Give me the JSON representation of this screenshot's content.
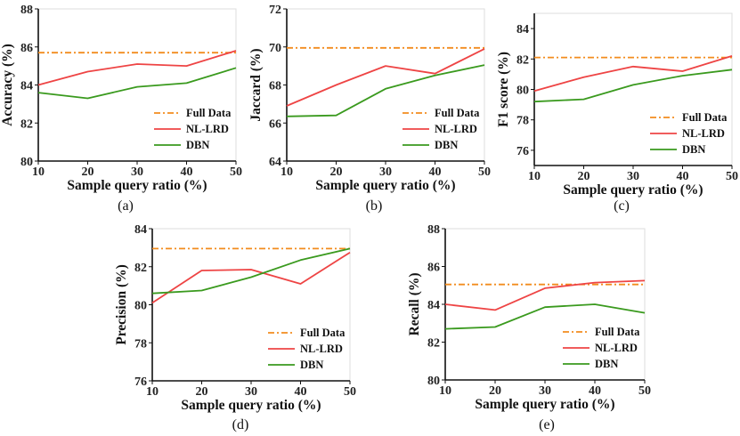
{
  "colors": {
    "full_data": "#f28c1e",
    "nl_lrd": "#ee4444",
    "dbn": "#3a9a1e",
    "axis": "#111111",
    "grid": "#dddddd"
  },
  "chart_data": [
    {
      "type": "line",
      "caption": "(a)",
      "xlabel": "Sample query ratio (%)",
      "ylabel": "Accuracy (%)",
      "x": [
        10,
        20,
        30,
        40,
        50
      ],
      "xlim": [
        10,
        50
      ],
      "ylim": [
        80,
        88
      ],
      "yticks": [
        "80",
        "82",
        "84",
        "86",
        "88"
      ],
      "xticks": [
        "10",
        "20",
        "30",
        "40",
        "50"
      ],
      "legend_position": "bottom-right",
      "series": [
        {
          "name": "Full Data",
          "style": "dashdot",
          "values": [
            85.7,
            85.7,
            85.7,
            85.7,
            85.7
          ]
        },
        {
          "name": "NL-LRD",
          "style": "solid",
          "values": [
            84.0,
            84.7,
            85.1,
            85.0,
            85.8
          ]
        },
        {
          "name": "DBN",
          "style": "solid",
          "values": [
            83.6,
            83.3,
            83.9,
            84.1,
            84.9
          ]
        }
      ]
    },
    {
      "type": "line",
      "caption": "(b)",
      "xlabel": "Sample query ratio (%)",
      "ylabel": "Jaccard (%)",
      "x": [
        10,
        20,
        30,
        40,
        50
      ],
      "xlim": [
        10,
        50
      ],
      "ylim": [
        64,
        72
      ],
      "yticks": [
        "64",
        "66",
        "68",
        "70",
        "72"
      ],
      "xticks": [
        "10",
        "20",
        "30",
        "40",
        "50"
      ],
      "legend_position": "bottom-right",
      "series": [
        {
          "name": "Full Data",
          "style": "dashdot",
          "values": [
            69.95,
            69.95,
            69.95,
            69.95,
            69.95
          ]
        },
        {
          "name": "NL-LRD",
          "style": "solid",
          "values": [
            66.9,
            68.0,
            69.0,
            68.6,
            69.9
          ]
        },
        {
          "name": "DBN",
          "style": "solid",
          "values": [
            66.35,
            66.4,
            67.8,
            68.5,
            69.05
          ]
        }
      ]
    },
    {
      "type": "line",
      "caption": "(c)",
      "xlabel": "Sample query ratio (%)",
      "ylabel": "F1 score (%)",
      "x": [
        10,
        20,
        30,
        40,
        50
      ],
      "xlim": [
        10,
        50
      ],
      "ylim": [
        75,
        85
      ],
      "yticks": [
        "76",
        "78",
        "80",
        "82",
        "84"
      ],
      "xticks": [
        "10",
        "20",
        "30",
        "40",
        "50"
      ],
      "legend_position": "bottom-right",
      "series": [
        {
          "name": "Full Data",
          "style": "dashdot",
          "values": [
            82.1,
            82.1,
            82.1,
            82.1,
            82.1
          ]
        },
        {
          "name": "NL-LRD",
          "style": "solid",
          "values": [
            79.9,
            80.8,
            81.5,
            81.2,
            82.2
          ]
        },
        {
          "name": "DBN",
          "style": "solid",
          "values": [
            79.2,
            79.35,
            80.3,
            80.9,
            81.3
          ]
        }
      ]
    },
    {
      "type": "line",
      "caption": "(d)",
      "xlabel": "Sample query ratio (%)",
      "ylabel": "Precision (%)",
      "x": [
        10,
        20,
        30,
        40,
        50
      ],
      "xlim": [
        10,
        50
      ],
      "ylim": [
        76,
        84
      ],
      "yticks": [
        "76",
        "78",
        "80",
        "82",
        "84"
      ],
      "xticks": [
        "10",
        "20",
        "30",
        "40",
        "50"
      ],
      "legend_position": "bottom-right",
      "series": [
        {
          "name": "Full Data",
          "style": "dashdot",
          "values": [
            82.95,
            82.95,
            82.95,
            82.95,
            82.95
          ]
        },
        {
          "name": "NL-LRD",
          "style": "solid",
          "values": [
            80.1,
            81.8,
            81.85,
            81.1,
            82.75
          ]
        },
        {
          "name": "DBN",
          "style": "solid",
          "values": [
            80.6,
            80.75,
            81.45,
            82.35,
            82.95
          ]
        }
      ]
    },
    {
      "type": "line",
      "caption": "(e)",
      "xlabel": "Sample query ratio (%)",
      "ylabel": "Recall (%)",
      "x": [
        10,
        20,
        30,
        40,
        50
      ],
      "xlim": [
        10,
        50
      ],
      "ylim": [
        80,
        88
      ],
      "yticks": [
        "80",
        "82",
        "84",
        "86",
        "88"
      ],
      "xticks": [
        "10",
        "20",
        "30",
        "40",
        "50"
      ],
      "legend_position": "bottom-right",
      "series": [
        {
          "name": "Full Data",
          "style": "dashdot",
          "values": [
            85.05,
            85.05,
            85.05,
            85.05,
            85.05
          ]
        },
        {
          "name": "NL-LRD",
          "style": "solid",
          "values": [
            84.0,
            83.7,
            84.85,
            85.15,
            85.25
          ]
        },
        {
          "name": "DBN",
          "style": "solid",
          "values": [
            82.7,
            82.8,
            83.85,
            84.0,
            83.55
          ]
        }
      ]
    }
  ]
}
